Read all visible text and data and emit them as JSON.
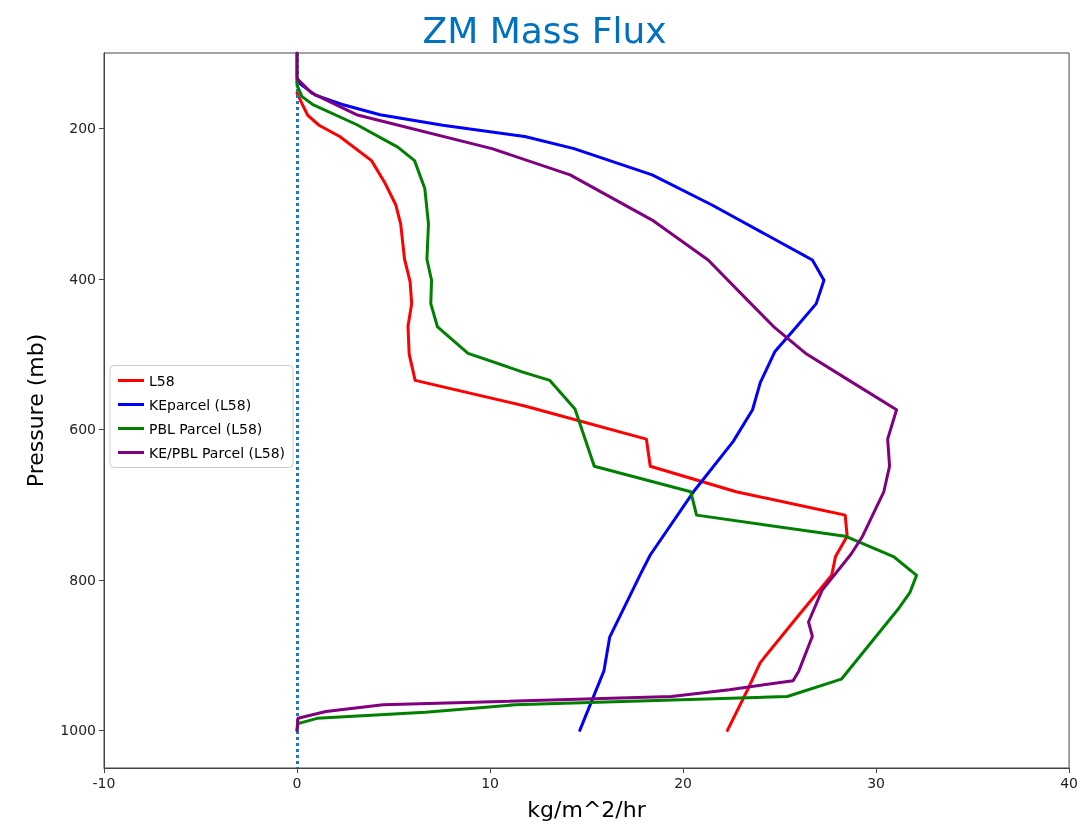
{
  "chart_data": {
    "type": "line",
    "title": "ZM Mass Flux",
    "xlabel": "kg/m^2/hr",
    "ylabel": "Pressure (mb)",
    "xlim": [
      -10,
      40
    ],
    "xticks": [
      -10,
      0,
      10,
      20,
      30,
      40
    ],
    "ylim": [
      1050,
      100
    ],
    "yticks": [
      200,
      400,
      600,
      800,
      1000
    ],
    "legend": "left",
    "line_style": "solid",
    "marker": "none",
    "ref_lines": [
      {
        "axis": "x",
        "value": 0,
        "color": "#1f77b4",
        "line_style": "dotted"
      }
    ],
    "series": [
      {
        "name": "L58",
        "color": "#ff0000",
        "x": [
          0,
          0.27,
          0.56,
          1.14,
          2.21,
          3.86,
          4.54,
          5.12,
          5.37,
          5.57,
          5.86,
          5.94,
          5.75,
          5.81,
          6.12,
          11.8,
          18.1,
          18.3,
          22.75,
          28.4,
          28.5,
          27.9,
          27.7,
          25.8,
          24.0,
          23.4,
          22.3
        ],
        "values": [
          153,
          168,
          183,
          196,
          211,
          243,
          272,
          302,
          327,
          374,
          404,
          433,
          463,
          500,
          535,
          569,
          613,
          649,
          683,
          714,
          742,
          769,
          794,
          853,
          910,
          943,
          1000
        ]
      },
      {
        "name": "KEparcel (L58)",
        "color": "#0000ff",
        "x": [
          0,
          0.95,
          2.3,
          4.3,
          7.55,
          11.8,
          14.35,
          18.4,
          21.5,
          26.7,
          27.3,
          26.9,
          25.9,
          24.75,
          24.0,
          23.6,
          22.6,
          20.54,
          18.3,
          17.8,
          16.2,
          15.9,
          14.65
        ],
        "values": [
          138,
          156,
          168,
          182,
          196,
          211,
          227,
          262,
          302,
          375,
          402,
          433,
          463,
          497,
          538,
          574,
          616,
          683,
          767,
          792,
          876,
          921,
          1000
        ]
      },
      {
        "name": "PBL Parcel (L58)",
        "color": "#008000",
        "x": [
          0,
          0,
          0.26,
          0.85,
          3.08,
          5.22,
          6.09,
          6.62,
          6.81,
          6.73,
          6.97,
          6.93,
          7.28,
          8.86,
          11.7,
          13.1,
          14.4,
          15.4,
          20.4,
          20.7,
          28.4,
          30.9,
          32.1,
          31.75,
          31.2,
          28.2,
          25.4,
          11.3,
          6.65,
          1.04,
          0.05,
          0
        ],
        "values": [
          100,
          143,
          158,
          169,
          195,
          225,
          243,
          280,
          327,
          374,
          402,
          433,
          464,
          499,
          524,
          535,
          573,
          649,
          683,
          714,
          742,
          769,
          794,
          817,
          837,
          932,
          955,
          966,
          976,
          984,
          991,
          1000
        ]
      },
      {
        "name": "KE/PBL Parcel (L58)",
        "color": "#800080",
        "x": [
          0,
          0,
          0.75,
          3.08,
          10.1,
          14.15,
          18.4,
          21.3,
          23.4,
          24.75,
          26.4,
          28.6,
          31.06,
          30.6,
          30.7,
          30.4,
          29.3,
          28.7,
          27.2,
          26.5,
          26.7,
          26.0,
          25.7,
          22.4,
          19.4,
          4.45,
          1.5,
          0.05,
          0
        ],
        "values": [
          100,
          134,
          153,
          182,
          227,
          262,
          322,
          375,
          430,
          465,
          500,
          535,
          574,
          613,
          649,
          683,
          742,
          766,
          814,
          856,
          875,
          921,
          934,
          946,
          955,
          966,
          975,
          984,
          1000
        ]
      }
    ]
  }
}
